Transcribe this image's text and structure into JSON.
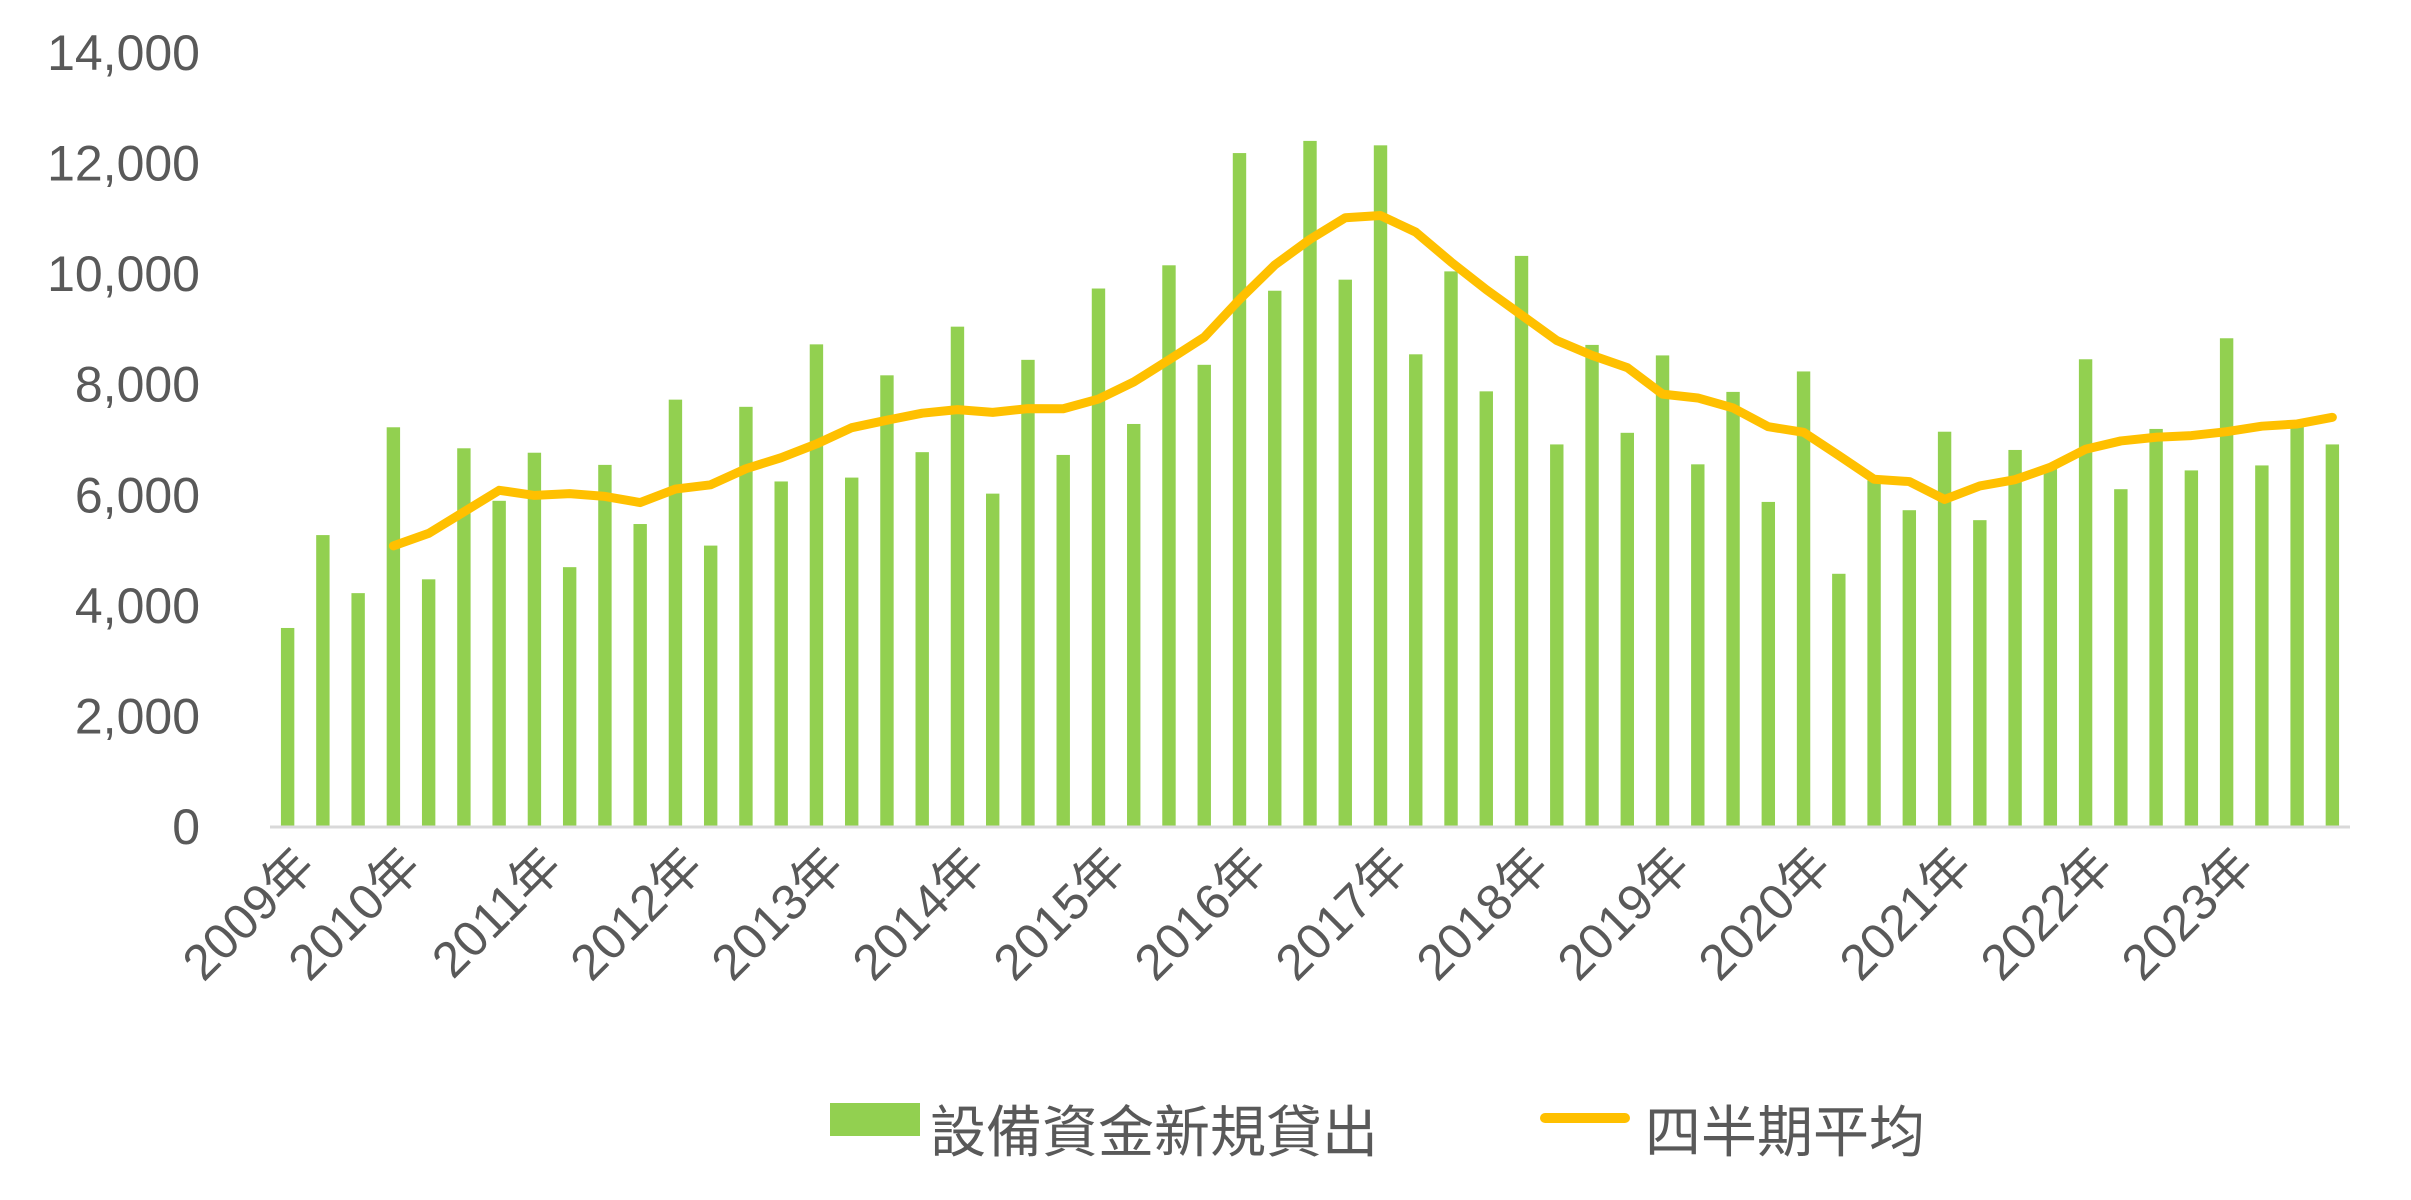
{
  "chart_data": {
    "type": "bar",
    "ylim": [
      0,
      14000
    ],
    "y_ticks": [
      "0",
      "2,000",
      "4,000",
      "6,000",
      "8,000",
      "10,000",
      "12,000",
      "14,000"
    ],
    "x_tick_labels": [
      {
        "index": 0,
        "label": "2009年"
      },
      {
        "index": 3,
        "label": "2010年"
      },
      {
        "index": 7,
        "label": "2011年"
      },
      {
        "index": 11,
        "label": "2012年"
      },
      {
        "index": 15,
        "label": "2013年"
      },
      {
        "index": 19,
        "label": "2014年"
      },
      {
        "index": 23,
        "label": "2015年"
      },
      {
        "index": 27,
        "label": "2016年"
      },
      {
        "index": 31,
        "label": "2017年"
      },
      {
        "index": 35,
        "label": "2018年"
      },
      {
        "index": 39,
        "label": "2019年"
      },
      {
        "index": 43,
        "label": "2020年"
      },
      {
        "index": 47,
        "label": "2021年"
      },
      {
        "index": 51,
        "label": "2022年"
      },
      {
        "index": 55,
        "label": "2023年"
      }
    ],
    "grid": false,
    "legend_position": "bottom",
    "colors": {
      "bar": "#92d050",
      "line": "#ffc000",
      "axis": "#d9d9d9",
      "text": "#595959"
    },
    "series": [
      {
        "name": "設備資金新規貸出",
        "kind": "bar",
        "values": [
          3600,
          5280,
          4230,
          7230,
          4480,
          6850,
          5900,
          6770,
          4700,
          6550,
          5480,
          7730,
          5090,
          7600,
          6250,
          8730,
          6320,
          8170,
          6780,
          9050,
          6030,
          8450,
          6730,
          9740,
          7290,
          10160,
          8360,
          12190,
          9700,
          12410,
          9900,
          12330,
          8550,
          10050,
          7880,
          10330,
          6920,
          8720,
          7130,
          8530,
          6560,
          7870,
          5880,
          8240,
          4580,
          6270,
          5730,
          7150,
          5550,
          6820,
          6500,
          8460,
          6110,
          7200,
          6450,
          8840,
          6540,
          7330,
          6920
        ]
      },
      {
        "name": "四半期平均",
        "kind": "line",
        "start_index": 3,
        "values": [
          5085,
          5310,
          5700,
          6090,
          5998,
          6030,
          5980,
          5868,
          6113,
          6190,
          6480,
          6680,
          6928,
          7223,
          7358,
          7485,
          7550,
          7500,
          7568,
          7565,
          7740,
          8050,
          8450,
          8860,
          9540,
          10165,
          10630,
          11020,
          11060,
          10760,
          10220,
          9720,
          9260,
          8800,
          8530,
          8310,
          7830,
          7760,
          7580,
          7240,
          7140,
          6720,
          6290,
          6248,
          5925,
          6170,
          6283,
          6506,
          6833,
          6983,
          7050,
          7080,
          7150,
          7250,
          7290,
          7410
        ]
      }
    ]
  }
}
